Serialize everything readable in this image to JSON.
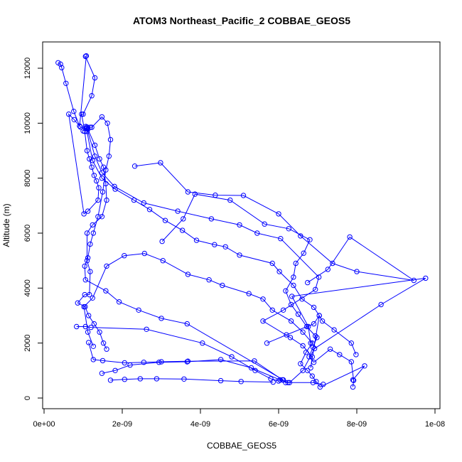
{
  "chart_data": {
    "type": "line",
    "title": "ATOM3 Northeast_Pacific_2 COBBAE_GEOS5",
    "xlabel": "COBBAE_GEOS5",
    "ylabel": "Altitude (m)",
    "xlim": [
      0,
      1e-08
    ],
    "ylim": [
      0,
      12500
    ],
    "x_ticks": [
      0,
      2e-09,
      4e-09,
      6e-09,
      8e-09,
      1e-08
    ],
    "x_tick_labels": [
      "0e+00",
      "2e-09",
      "4e-09",
      "6e-09",
      "8e-09",
      "1e-08"
    ],
    "y_ticks": [
      0,
      2000,
      4000,
      6000,
      8000,
      10000,
      12000
    ],
    "y_tick_labels": [
      "0",
      "2000",
      "4000",
      "6000",
      "8000",
      "10000",
      "12000"
    ],
    "grid": false,
    "legend": "none",
    "marker": "open circle",
    "color": "#0000ff",
    "series": [
      {
        "x": [
          3.6e-10,
          4.2e-10,
          4.5e-10,
          5.6e-10,
          7.6e-10,
          9.1e-10,
          1.08e-09,
          1.06e-09,
          1.3e-09,
          1.22e-09,
          1e-09,
          9.6e-10,
          1.04e-09,
          1.1e-09,
          1.16e-09,
          1.22e-09,
          1.28e-09,
          1.34e-09,
          1.4e-09,
          1.38e-09,
          1.12e-09,
          1.02e-09,
          6.3e-10,
          7.7e-10,
          9.3e-10,
          1.12e-09,
          1.3e-09,
          1.42e-09,
          1.52e-09,
          1.58e-09,
          1.6e-09,
          1.48e-09,
          1.24e-09,
          1.1e-09,
          1.1e-09,
          1.18e-09,
          1.16e-09,
          1.04e-09,
          8.6e-10,
          1.05e-09,
          1.14e-09,
          1.28e-09,
          1.42e-09,
          1.52e-09,
          1.6e-09
        ],
        "y": [
          12200,
          12150,
          12020,
          11450,
          10430,
          9900,
          12450,
          12430,
          11650,
          11000,
          10330,
          10330,
          9700,
          9000,
          8700,
          8400,
          8100,
          7900,
          7650,
          7200,
          6800,
          6700,
          10330,
          10130,
          9860,
          9780,
          9200,
          8700,
          8400,
          7800,
          7200,
          6600,
          6300,
          6000,
          5000,
          4600,
          3760,
          3760,
          3460,
          3320,
          3000,
          2700,
          2400,
          2000,
          1780
        ]
      },
      {
        "x": [
          1.07e-09,
          1.1e-09,
          1.1e-09,
          1.18e-09,
          1.22e-09,
          1.48e-09,
          1.62e-09,
          1.7e-09,
          1.66e-09,
          1.58e-09,
          1.5e-09,
          1.38e-09,
          1.26e-09,
          1.18e-09,
          1.12e-09,
          1.04e-09,
          1.06e-09,
          1.58e-09,
          1.92e-09,
          2.42e-09,
          3e-09,
          3.66e-09,
          6.12e-09,
          6e-09,
          5.8e-09,
          5.4e-09,
          4.8e-09,
          4.05e-09,
          2.62e-09,
          1.2e-09,
          1.06e-09,
          8.3e-10
        ],
        "y": [
          9880,
          9860,
          9700,
          9850,
          9850,
          10230,
          10000,
          9400,
          8800,
          8300,
          7500,
          6600,
          6000,
          5600,
          5100,
          4800,
          4300,
          3900,
          3500,
          3200,
          2900,
          2700,
          660,
          620,
          700,
          1000,
          1500,
          2000,
          2500,
          2570,
          2600,
          2600
        ]
      },
      {
        "x": [
          1e-09,
          1.1e-09,
          1.3e-09,
          1.48e-09,
          1.8e-09,
          2.55e-09,
          3.42e-09,
          4.28e-09,
          5e-09,
          5.45e-09,
          6.05e-09,
          7.03e-09,
          6.94e-09,
          6.12e-09,
          5.6e-09,
          6.3e-09,
          6.62e-09,
          6.86e-09,
          6.82e-09,
          7.04e-09,
          6.9e-09,
          6.2e-09,
          5.7e-09
        ],
        "y": [
          9720,
          9810,
          8800,
          8200,
          7700,
          7100,
          6800,
          6520,
          6300,
          6000,
          5800,
          4400,
          3950,
          3200,
          2800,
          2200,
          1900,
          1500,
          1100,
          3000,
          2700,
          2300,
          2000
        ]
      },
      {
        "x": [
          1.08e-09,
          1.24e-09,
          1.48e-09,
          1.82e-09,
          2.3e-09,
          2.7e-09,
          3.1e-09,
          3.54e-09,
          3.9e-09,
          4.36e-09,
          4.64e-09,
          5e-09,
          5.84e-09,
          6.02e-09,
          6.38e-09,
          6.6e-09,
          6.9e-09,
          7.04e-09,
          7.12e-09,
          7.42e-09,
          7.86e-09,
          7.98e-09
        ],
        "y": [
          9830,
          8640,
          8000,
          7600,
          7200,
          6860,
          6460,
          6100,
          5740,
          5580,
          5500,
          5200,
          4900,
          4600,
          4100,
          3600,
          3300,
          3000,
          2800,
          2480,
          2000,
          1580
        ]
      },
      {
        "x": [
          3.02e-09,
          3.56e-09,
          3.86e-09,
          4.76e-09,
          5.64e-09,
          6.26e-09,
          6.8e-09,
          6.64e-09,
          6.44e-09,
          6.38e-09,
          6.18e-09,
          6.32e-09,
          6.5e-09,
          6.72e-09,
          6.94e-09,
          6.98e-09,
          6.88e-09,
          6.78e-09,
          6.9e-09,
          7.32e-09,
          7.56e-09,
          7.86e-09,
          7.92e-09,
          7.9e-09
        ],
        "y": [
          5700,
          6520,
          7420,
          7200,
          6330,
          6160,
          5760,
          5270,
          4900,
          4400,
          3900,
          3400,
          3050,
          2600,
          2260,
          2200,
          1850,
          1500,
          1300,
          1780,
          1580,
          1320,
          640,
          400
        ]
      },
      {
        "x": [
          1.26e-09,
          1.12e-09,
          1.02e-09,
          1.24e-09,
          1.6e-09,
          2.05e-09,
          2.57e-09,
          3.04e-09,
          3.68e-09,
          4.22e-09,
          4.56e-09,
          5.24e-09,
          5.6e-09,
          5.84e-09,
          6.32e-09,
          6.62e-09,
          6.86e-09,
          6.7e-09,
          6.56e-09,
          6.74e-09,
          6.86e-09,
          6.96e-09,
          7.06e-09,
          8.2e-09,
          7.9e-09
        ],
        "y": [
          1880,
          2400,
          3320,
          3640,
          4800,
          5180,
          5260,
          5000,
          4500,
          4300,
          4100,
          3800,
          3600,
          3200,
          2800,
          2400,
          2000,
          1660,
          1250,
          1000,
          800,
          600,
          400,
          1170,
          660
        ]
      },
      {
        "x": [
          1.14e-09,
          1.26e-09,
          1.5e-09,
          2.06e-09,
          2.55e-09,
          3e-09,
          3.68e-09,
          5.38e-09,
          6.1e-09,
          6.18e-09,
          6.28e-09,
          6.62e-09,
          6.92e-09,
          8.62e-09,
          9.76e-09,
          6.34e-09,
          6.76e-09,
          6.82e-09
        ],
        "y": [
          2020,
          1400,
          1360,
          1280,
          1300,
          1320,
          1340,
          1350,
          660,
          560,
          560,
          1000,
          1800,
          3400,
          4360,
          3700,
          2600,
          2000
        ]
      },
      {
        "x": [
          2.32e-09,
          2.98e-09,
          3.68e-09,
          4.38e-09,
          5.1e-09,
          6e-09,
          6.56e-09,
          7.38e-09,
          8e-09,
          9.46e-09,
          7.82e-09,
          7.26e-09,
          6.74e-09
        ],
        "y": [
          8440,
          8560,
          7500,
          7380,
          7370,
          6700,
          5900,
          4900,
          4600,
          4280,
          5860,
          4680,
          4200
        ]
      },
      {
        "x": [
          1.48e-09,
          1.82e-09,
          2.2e-09,
          2.94e-09,
          3.66e-09,
          4.52e-09,
          5.3e-09,
          6.04e-09,
          6.24e-09,
          6.88e-09,
          7.14e-09
        ],
        "y": [
          900,
          1000,
          1200,
          1300,
          1320,
          1400,
          1100,
          660,
          560,
          560,
          500
        ]
      },
      {
        "x": [
          1.7e-09,
          2.06e-09,
          2.46e-09,
          2.88e-09,
          3.58e-09,
          4.52e-09,
          5.04e-09,
          5.86e-09
        ],
        "y": [
          650,
          680,
          700,
          700,
          690,
          630,
          600,
          580
        ]
      }
    ]
  }
}
